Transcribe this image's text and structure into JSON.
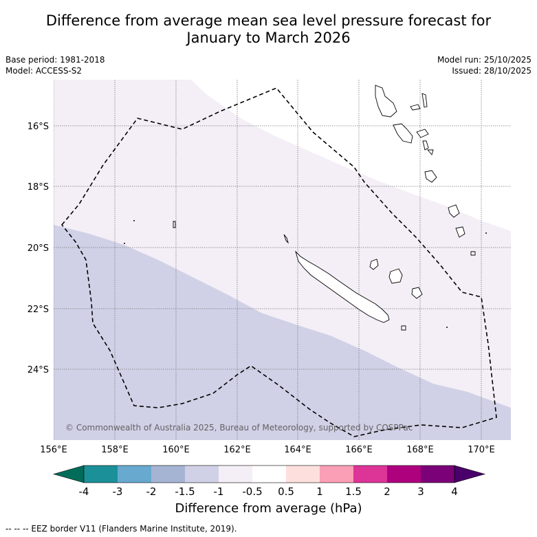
{
  "title": {
    "line1": "Difference from average mean sea level pressure forecast for",
    "line2": "January to March 2026"
  },
  "meta": {
    "base_period": "Base period: 1981-2018",
    "model": "Model: ACCESS-S2",
    "model_run": "Model run: 25/10/2025",
    "issued": "Issued: 28/10/2025"
  },
  "map": {
    "lon_ticks": [
      "156°E",
      "158°E",
      "160°E",
      "162°E",
      "164°E",
      "166°E",
      "168°E",
      "170°E"
    ],
    "lat_ticks": [
      "16°S",
      "18°S",
      "20°S",
      "22°S",
      "24°S"
    ],
    "copyright": "© Commonwealth of Australia 2025, Bureau of Meteorology, supported by COSPPac",
    "colors": {
      "band_neg_1_5_to_neg_1": "#d0d1e6",
      "band_neg_1_to_neg_0_5": "#f4eef6",
      "band_neg_0_5_to_0_5": "#ffffff"
    }
  },
  "colorbar": {
    "label": "Difference from average (hPa)",
    "ticks": [
      "-4",
      "-3",
      "-2",
      "-1.5",
      "-1",
      "-0.5",
      "0.5",
      "1",
      "1.5",
      "2",
      "3",
      "4"
    ],
    "colors": [
      "#016c59",
      "#1c9099",
      "#67a9cf",
      "#a6b4d4",
      "#d0d1e6",
      "#f4eef6",
      "#ffffff",
      "#fde0dd",
      "#fa9fb5",
      "#dd3497",
      "#ae017e",
      "#7a0177",
      "#49006a"
    ]
  },
  "footnote": "-- -- -- EEZ border V11 (Flanders Marine Institute, 2019)."
}
